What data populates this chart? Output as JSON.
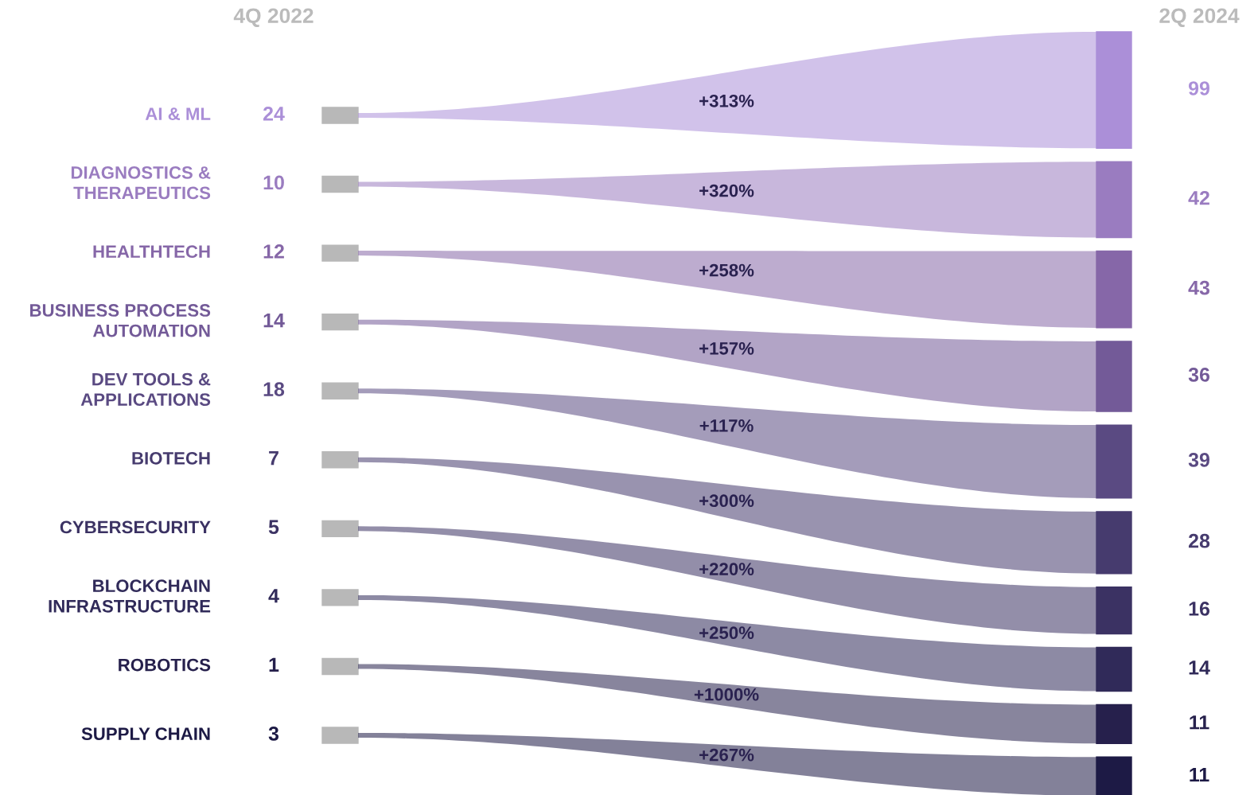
{
  "chart_data": {
    "type": "other",
    "data_labels": true,
    "categories": [
      "AI & ML",
      "DIAGNOSTICS &\nTHERAPEUTICS",
      "HEALTHTECH",
      "BUSINESS PROCESS\nAUTOMATION",
      "DEV TOOLS &\nAPPLICATIONS",
      "BIOTECH",
      "CYBERSECURITY",
      "BLOCKCHAIN\nINFRASTRUCTURE",
      "ROBOTICS",
      "SUPPLY CHAIN"
    ],
    "colors": [
      "#ab8fd8",
      "#9a7cc0",
      "#8667a8",
      "#735a98",
      "#5a4a82",
      "#463b6e",
      "#3b3263",
      "#302a59",
      "#26204c",
      "#1d1a45"
    ],
    "series": [
      {
        "name": "4Q 2022",
        "color": "#b8b8b8",
        "values": [
          24,
          10,
          12,
          14,
          18,
          7,
          5,
          4,
          1,
          3
        ]
      },
      {
        "name": "2Q 2024",
        "values": [
          99,
          42,
          43,
          36,
          39,
          28,
          16,
          14,
          11,
          11
        ]
      }
    ],
    "annotations": [
      "+313%",
      "+320%",
      "+258%",
      "+157%",
      "+117%",
      "+300%",
      "+220%",
      "+250%",
      "+1000%",
      "+267%"
    ]
  }
}
